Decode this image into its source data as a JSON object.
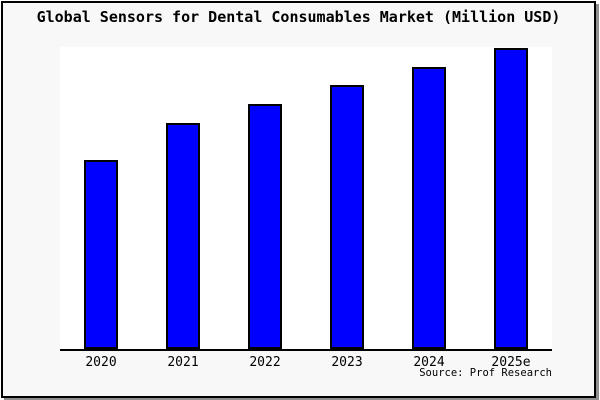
{
  "frame": {
    "background_color": "#f8f8f8",
    "border_color": "#000000",
    "shadow_color": "#8f8f8f"
  },
  "title": "Global Sensors for Dental Consumables Market (Million USD)",
  "source_label": "Source: Prof Research",
  "chart_data": {
    "type": "bar",
    "title": "Global Sensors for Dental Consumables Market (Million USD)",
    "categories": [
      "2020",
      "2021",
      "2022",
      "2023",
      "2024",
      "2025e"
    ],
    "values": [
      189,
      226,
      245,
      264,
      282,
      301
    ],
    "values_note": "relative bar heights in pixels; no y-axis scale, ticks or value labels are shown in the chart",
    "xlabel": "",
    "ylabel": "",
    "ylim": [
      0,
      304
    ],
    "grid": false,
    "legend": false,
    "bar_color": "#0000ff",
    "bar_edge_color": "#000000",
    "plot_bg_color": "#ffffff",
    "axis_color": "#000000",
    "annotation": "Source: Prof Research"
  }
}
